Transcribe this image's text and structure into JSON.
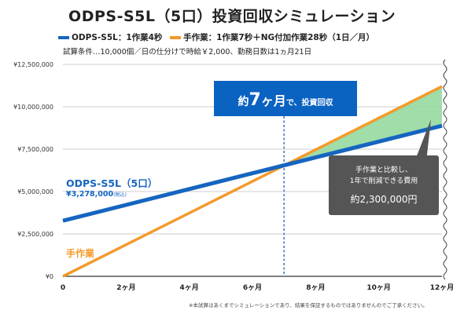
{
  "title": "ODPS-S5L（5口）投資回収シミュレーション",
  "legend": [
    {
      "label": "ODPS-S5L：1作業4秒",
      "color": "#1565c0"
    },
    {
      "label": "手作業：1作業7秒＋NG付加作業28秒（1日／月）",
      "color": "#f39a2b"
    }
  ],
  "conditions": "試算条件…10,000個／日の仕分けで時給￥2,000、勤務日数は1ヵ月21日",
  "note": "※本試算はあくまでシミュレーションであり、結果を保証するものではありませんのでご了承ください。",
  "colors": {
    "odps": "#1565c0",
    "manual": "#f39a2b",
    "savings": "#96d9a0",
    "callout": "#0a62c1",
    "savings_box": "#555555",
    "dashed": "#1565c0"
  },
  "chart_data": {
    "type": "line",
    "x": [
      0,
      12
    ],
    "xlim": [
      0,
      12
    ],
    "ylim": [
      0,
      12500000
    ],
    "x_ticks": [
      0,
      2,
      4,
      6,
      8,
      10,
      12
    ],
    "x_tick_labels": [
      "0",
      "2ヶ月",
      "4ヶ月",
      "6ヶ月",
      "8ヶ月",
      "10ヶ月",
      "12ヶ月"
    ],
    "y_ticks": [
      0,
      2500000,
      5000000,
      7500000,
      10000000,
      12500000
    ],
    "y_tick_labels": [
      "¥0",
      "¥2,500,000",
      "¥5,000,000",
      "¥7,500,000",
      "¥10,000,000",
      "¥12,500,000"
    ],
    "grid": "horizontal",
    "series": [
      {
        "name": "ODPS-S5L（5口）",
        "values": [
          3278000,
          8880000
        ],
        "line_label": "ODPS-S5L（5口）",
        "sub_label": "¥3,278,000",
        "sub_label_note": "(税込)"
      },
      {
        "name": "手作業",
        "values": [
          0,
          11200000
        ],
        "line_label": "手作業"
      }
    ],
    "payback_month": 7,
    "payback_callout": {
      "big_prefix": "約",
      "big_num": "7",
      "big_suffix": "ヶ月",
      "small": "で、投資回収"
    },
    "savings_callout": {
      "line1": "手作業と比較し、",
      "line2": "1年で削減できる費用",
      "amount": "約2,300,000円"
    }
  }
}
